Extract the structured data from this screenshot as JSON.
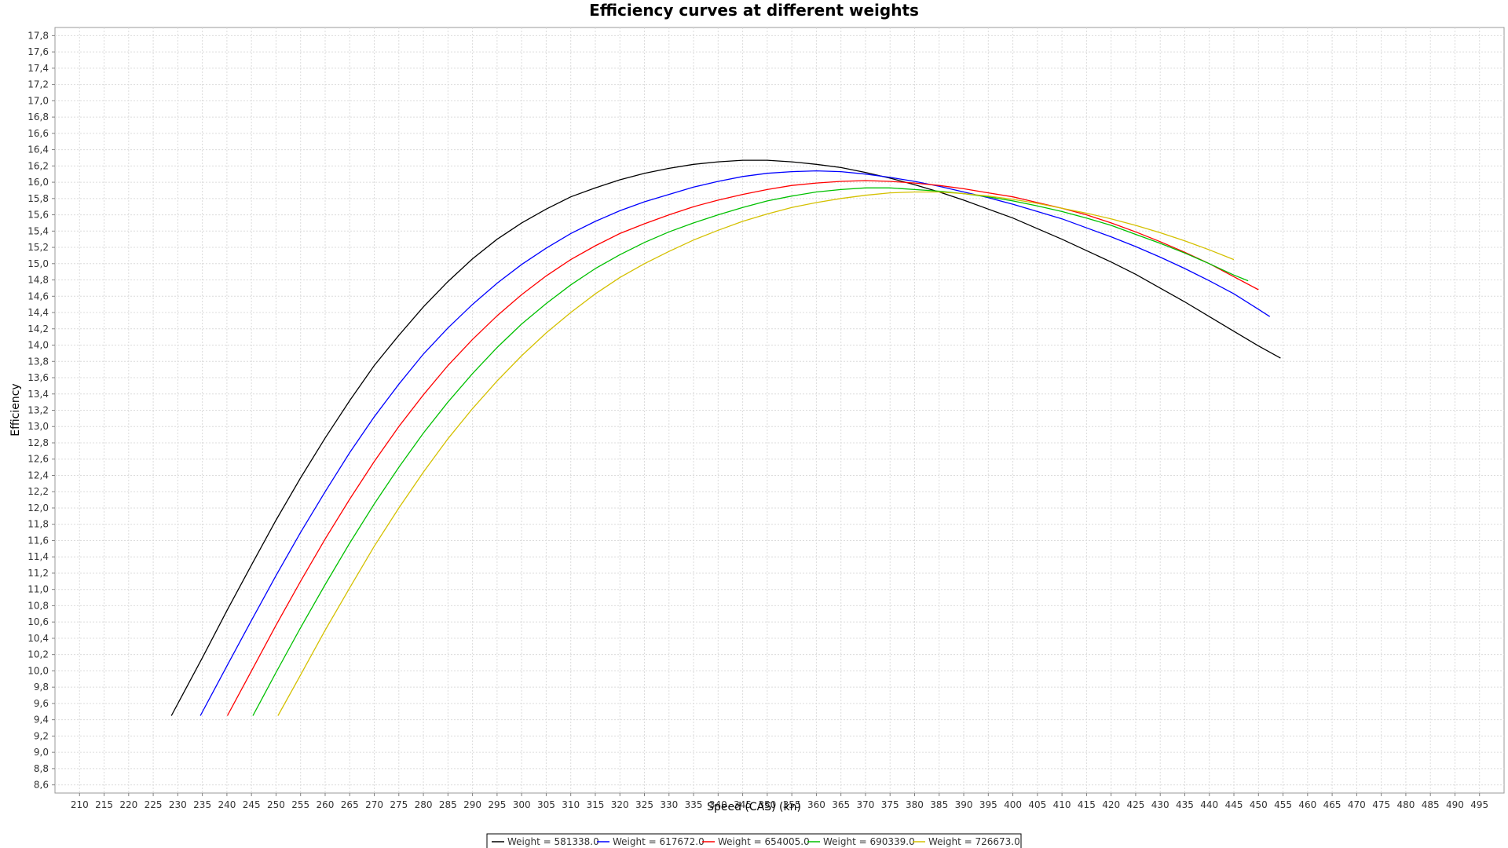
{
  "chart_data": {
    "type": "line",
    "title": "Efficiency curves at different weights",
    "xlabel": "Speed (CAS) (kn)",
    "ylabel": "Efficiency",
    "xlim": [
      205,
      500
    ],
    "ylim": [
      8.5,
      17.9
    ],
    "x_ticks": [
      210,
      215,
      220,
      225,
      230,
      235,
      240,
      245,
      250,
      255,
      260,
      265,
      270,
      275,
      280,
      285,
      290,
      295,
      300,
      305,
      310,
      315,
      320,
      325,
      330,
      335,
      340,
      345,
      350,
      355,
      360,
      365,
      370,
      375,
      380,
      385,
      390,
      395,
      400,
      405,
      410,
      415,
      420,
      425,
      430,
      435,
      440,
      445,
      450,
      455,
      460,
      465,
      470,
      475,
      480,
      485,
      490,
      495
    ],
    "y_ticks": [
      8.6,
      8.8,
      9.0,
      9.2,
      9.4,
      9.6,
      9.8,
      10.0,
      10.2,
      10.4,
      10.6,
      10.8,
      11.0,
      11.2,
      11.4,
      11.6,
      11.8,
      12.0,
      12.2,
      12.4,
      12.6,
      12.8,
      13.0,
      13.2,
      13.4,
      13.6,
      13.8,
      14.0,
      14.2,
      14.4,
      14.6,
      14.8,
      15.0,
      15.2,
      15.4,
      15.6,
      15.8,
      16.0,
      16.2,
      16.4,
      16.6,
      16.8,
      17.0,
      17.2,
      17.4,
      17.6,
      17.8
    ],
    "decimal_separator": ",",
    "grid": true,
    "legend_position": "bottom",
    "series": [
      {
        "name": "Weight = 581338.0",
        "color": "#000000",
        "x": [
          228.7,
          235,
          240,
          245,
          250,
          255,
          260,
          265,
          270,
          275,
          280,
          285,
          290,
          295,
          300,
          305,
          310,
          315,
          320,
          325,
          330,
          335,
          340,
          345,
          350,
          355,
          360,
          365,
          370,
          375,
          380,
          385,
          390,
          395,
          400,
          405,
          410,
          415,
          420,
          425,
          430,
          435,
          440,
          445,
          450,
          454.5
        ],
        "y": [
          9.45,
          10.16,
          10.74,
          11.3,
          11.85,
          12.37,
          12.86,
          13.32,
          13.75,
          14.12,
          14.47,
          14.78,
          15.06,
          15.3,
          15.5,
          15.67,
          15.82,
          15.93,
          16.03,
          16.11,
          16.17,
          16.22,
          16.25,
          16.27,
          16.27,
          16.25,
          16.22,
          16.18,
          16.12,
          16.05,
          15.97,
          15.88,
          15.78,
          15.67,
          15.56,
          15.43,
          15.3,
          15.16,
          15.02,
          14.87,
          14.7,
          14.53,
          14.35,
          14.17,
          13.99,
          13.84
        ]
      },
      {
        "name": "Weight = 617672.0",
        "color": "#0000ff",
        "x": [
          234.6,
          240,
          245,
          250,
          255,
          260,
          265,
          270,
          275,
          280,
          285,
          290,
          295,
          300,
          305,
          310,
          315,
          320,
          325,
          330,
          335,
          340,
          345,
          350,
          355,
          360,
          365,
          370,
          375,
          380,
          385,
          390,
          395,
          400,
          405,
          410,
          415,
          420,
          425,
          430,
          435,
          440,
          445,
          450,
          452.3
        ],
        "y": [
          9.45,
          10.06,
          10.62,
          11.17,
          11.7,
          12.2,
          12.68,
          13.12,
          13.52,
          13.89,
          14.21,
          14.5,
          14.76,
          14.99,
          15.19,
          15.37,
          15.52,
          15.65,
          15.76,
          15.85,
          15.94,
          16.01,
          16.07,
          16.11,
          16.13,
          16.14,
          16.13,
          16.1,
          16.06,
          16.01,
          15.95,
          15.88,
          15.81,
          15.73,
          15.64,
          15.55,
          15.44,
          15.33,
          15.21,
          15.08,
          14.94,
          14.79,
          14.63,
          14.44,
          14.35
        ]
      },
      {
        "name": "Weight = 654005.0",
        "color": "#ff0000",
        "x": [
          240.1,
          245,
          250,
          255,
          260,
          265,
          270,
          275,
          280,
          285,
          290,
          295,
          300,
          305,
          310,
          315,
          320,
          325,
          330,
          335,
          340,
          345,
          350,
          355,
          360,
          365,
          370,
          375,
          380,
          385,
          390,
          395,
          400,
          405,
          410,
          415,
          420,
          425,
          430,
          435,
          440,
          445,
          450
        ],
        "y": [
          9.45,
          10.0,
          10.56,
          11.1,
          11.62,
          12.11,
          12.57,
          13.0,
          13.39,
          13.75,
          14.07,
          14.36,
          14.62,
          14.85,
          15.05,
          15.22,
          15.37,
          15.49,
          15.6,
          15.7,
          15.78,
          15.85,
          15.91,
          15.96,
          15.99,
          16.01,
          16.02,
          16.01,
          15.99,
          15.96,
          15.92,
          15.87,
          15.82,
          15.75,
          15.68,
          15.6,
          15.5,
          15.39,
          15.27,
          15.14,
          15.0,
          14.84,
          14.68
        ]
      },
      {
        "name": "Weight = 690339.0",
        "color": "#00c000",
        "x": [
          245.3,
          250,
          255,
          260,
          265,
          270,
          275,
          280,
          285,
          290,
          295,
          300,
          305,
          310,
          315,
          320,
          325,
          330,
          335,
          340,
          345,
          350,
          355,
          360,
          365,
          370,
          375,
          380,
          385,
          390,
          395,
          400,
          405,
          410,
          415,
          420,
          425,
          430,
          435,
          440,
          445,
          447.9
        ],
        "y": [
          9.45,
          9.98,
          10.53,
          11.06,
          11.57,
          12.05,
          12.5,
          12.92,
          13.3,
          13.65,
          13.97,
          14.26,
          14.51,
          14.74,
          14.94,
          15.11,
          15.26,
          15.39,
          15.5,
          15.6,
          15.69,
          15.77,
          15.83,
          15.88,
          15.91,
          15.93,
          15.93,
          15.91,
          15.89,
          15.86,
          15.82,
          15.77,
          15.71,
          15.64,
          15.56,
          15.47,
          15.36,
          15.25,
          15.13,
          15.0,
          14.86,
          14.79
        ]
      },
      {
        "name": "Weight = 726673.0",
        "color": "#d4c000",
        "x": [
          250.4,
          255,
          260,
          265,
          270,
          275,
          280,
          285,
          290,
          295,
          300,
          305,
          310,
          315,
          320,
          325,
          330,
          335,
          340,
          345,
          350,
          355,
          360,
          365,
          370,
          375,
          380,
          385,
          390,
          395,
          400,
          405,
          410,
          415,
          420,
          425,
          430,
          435,
          440,
          445
        ],
        "y": [
          9.45,
          9.95,
          10.5,
          11.02,
          11.53,
          12.0,
          12.44,
          12.85,
          13.22,
          13.56,
          13.87,
          14.15,
          14.4,
          14.63,
          14.83,
          15.0,
          15.15,
          15.29,
          15.41,
          15.52,
          15.61,
          15.69,
          15.75,
          15.8,
          15.84,
          15.87,
          15.88,
          15.88,
          15.86,
          15.83,
          15.79,
          15.74,
          15.68,
          15.62,
          15.55,
          15.47,
          15.38,
          15.28,
          15.17,
          15.05
        ]
      }
    ]
  }
}
